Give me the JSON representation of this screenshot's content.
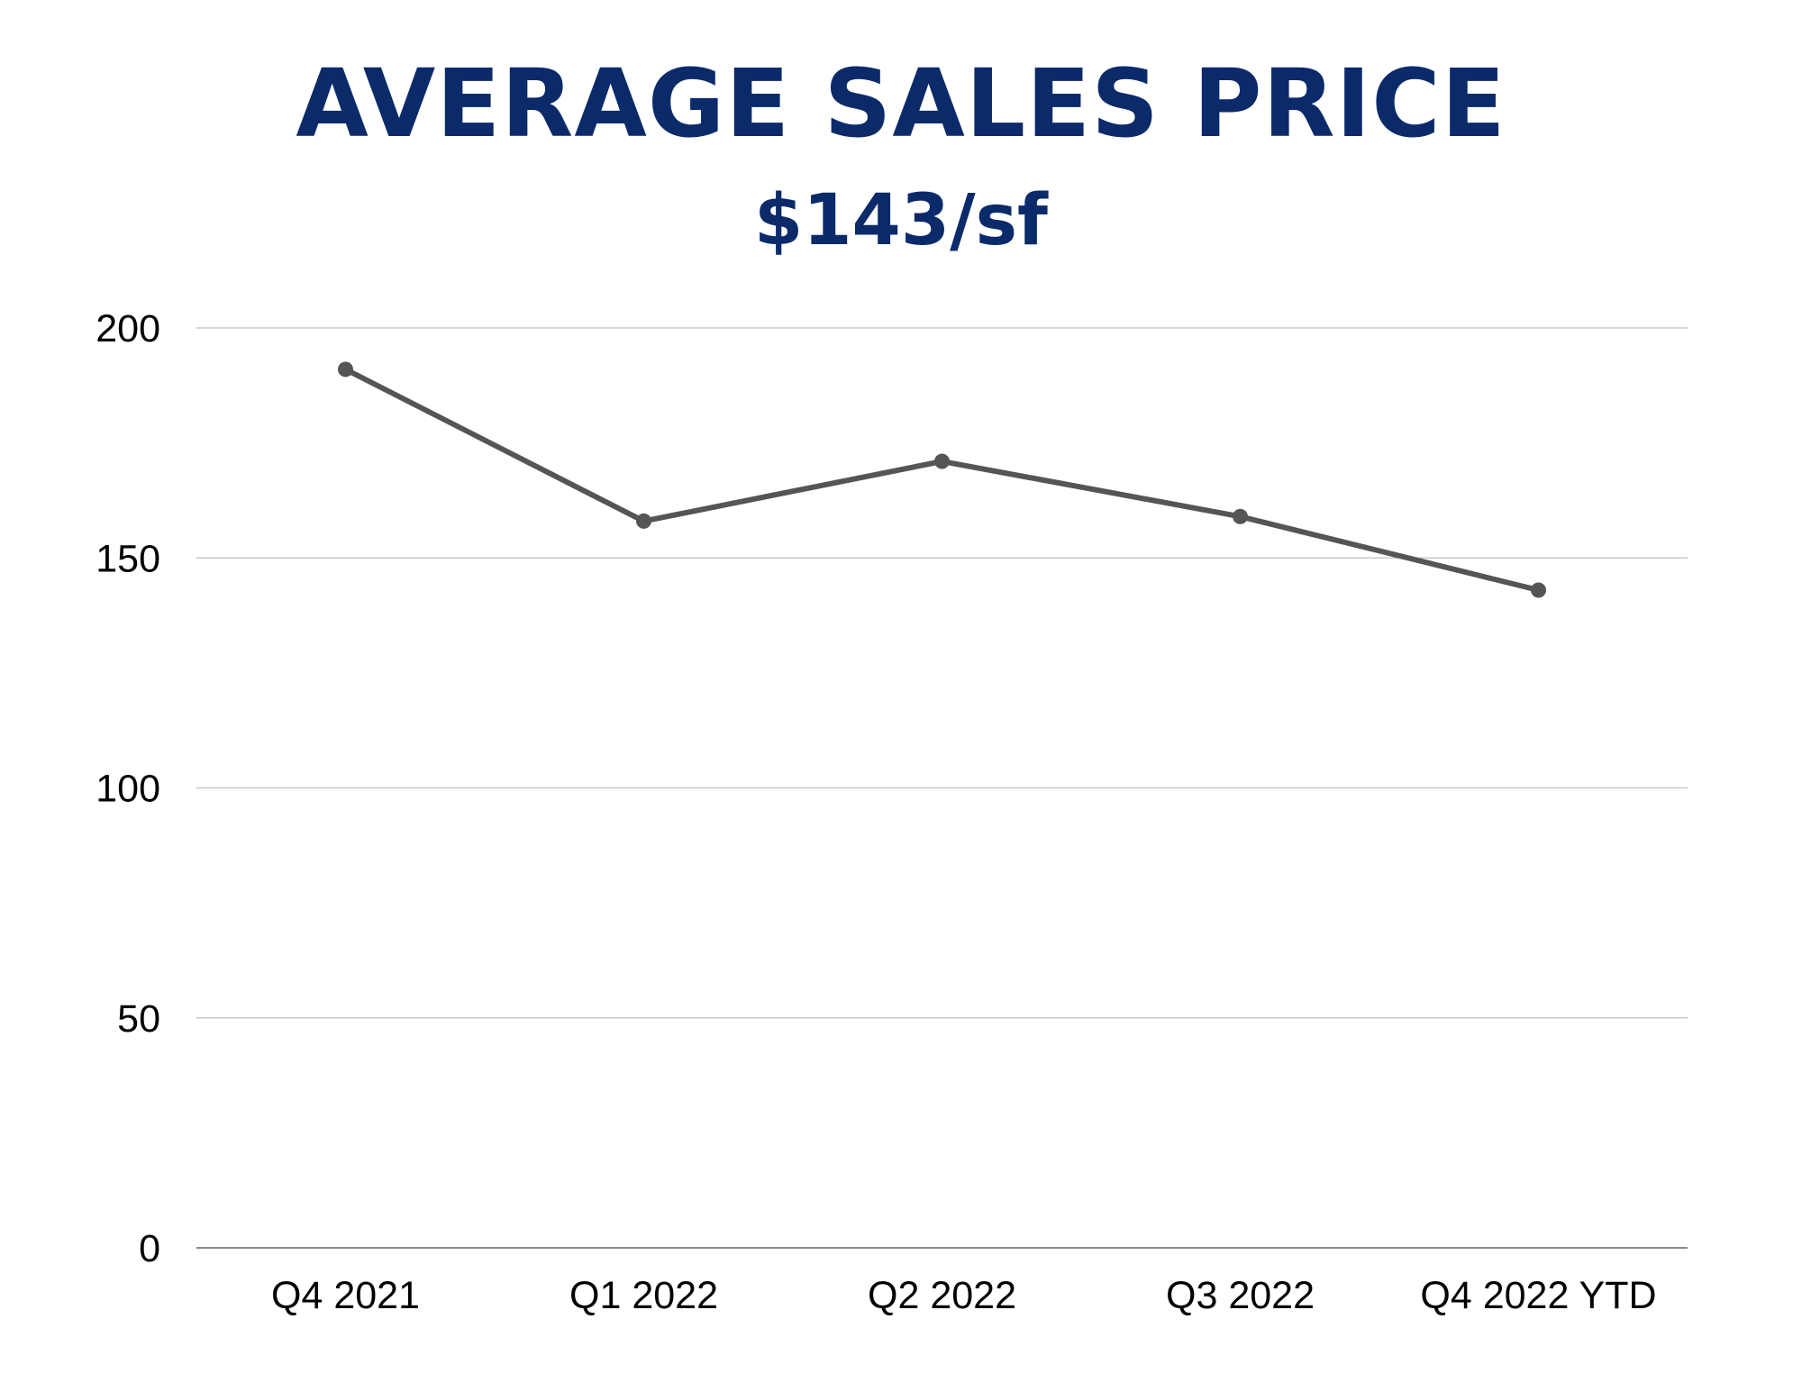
{
  "chart_data": {
    "type": "line",
    "title": "AVERAGE SALES PRICE",
    "subtitle": "$143/sf",
    "categories": [
      "Q4 2021",
      "Q1 2022",
      "Q2 2022",
      "Q3 2022",
      "Q4 2022 YTD"
    ],
    "series": [
      {
        "values": [
          191,
          158,
          171,
          159,
          143
        ]
      }
    ],
    "yticks": [
      0,
      50,
      100,
      150,
      200
    ],
    "ylim": [
      0,
      200
    ],
    "grid": true,
    "colors": {
      "title": "#0b2a6a",
      "line": "#555555",
      "grid": "#c8c8c8",
      "axis": "#8a8a8a"
    }
  }
}
